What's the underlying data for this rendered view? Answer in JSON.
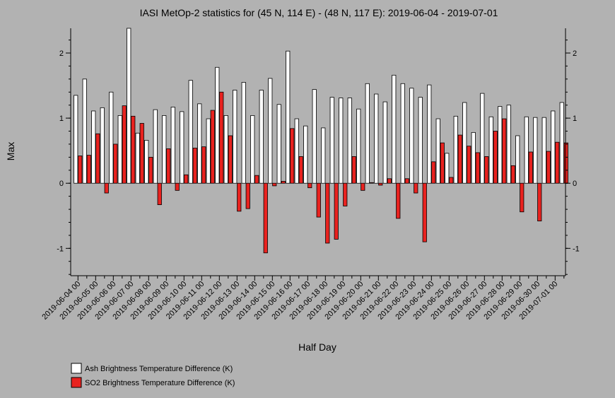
{
  "chart_data": {
    "type": "bar",
    "title": "IASI MetOp-2 statistics for (45 N, 114 E) - (48 N, 117 E): 2019-06-04 - 2019-07-01",
    "xlabel": "Half Day",
    "ylabel": "Max",
    "ylim": [
      -1.42,
      2.38
    ],
    "yticks": [
      -1,
      0,
      1,
      2
    ],
    "grid": false,
    "legend_position": "bottom-left",
    "categories": [
      "2019-06-04 00",
      "2019-06-04 12",
      "2019-06-05 00",
      "2019-06-05 12",
      "2019-06-06 00",
      "2019-06-06 12",
      "2019-06-07 00",
      "2019-06-07 12",
      "2019-06-08 00",
      "2019-06-08 12",
      "2019-06-09 00",
      "2019-06-09 12",
      "2019-06-10 00",
      "2019-06-10 12",
      "2019-06-11 00",
      "2019-06-11 12",
      "2019-06-12 00",
      "2019-06-12 12",
      "2019-06-13 00",
      "2019-06-13 12",
      "2019-06-14 00",
      "2019-06-14 12",
      "2019-06-15 00",
      "2019-06-15 12",
      "2019-06-16 00",
      "2019-06-16 12",
      "2019-06-17 00",
      "2019-06-17 12",
      "2019-06-18 00",
      "2019-06-18 12",
      "2019-06-19 00",
      "2019-06-19 12",
      "2019-06-20 00",
      "2019-06-20 12",
      "2019-06-21 00",
      "2019-06-21 12",
      "2019-06-22 00",
      "2019-06-22 12",
      "2019-06-23 00",
      "2019-06-23 12",
      "2019-06-24 00",
      "2019-06-24 12",
      "2019-06-25 00",
      "2019-06-25 12",
      "2019-06-26 00",
      "2019-06-26 12",
      "2019-06-27 00",
      "2019-06-27 12",
      "2019-06-28 00",
      "2019-06-28 12",
      "2019-06-29 00",
      "2019-06-29 12",
      "2019-06-30 00",
      "2019-06-30 12",
      "2019-07-01 00",
      "2019-07-01 12"
    ],
    "xtick_labels": [
      "2019-06-04 00",
      "2019-06-05 00",
      "2019-06-06 00",
      "2019-06-07 00",
      "2019-06-08 00",
      "2019-06-09 00",
      "2019-06-10 00",
      "2019-06-11 00",
      "2019-06-12 00",
      "2019-06-13 00",
      "2019-06-14 00",
      "2019-06-15 00",
      "2019-06-16 00",
      "2019-06-17 00",
      "2019-06-18 00",
      "2019-06-19 00",
      "2019-06-20 00",
      "2019-06-21 00",
      "2019-06-22 00",
      "2019-06-23 00",
      "2019-06-24 00",
      "2019-06-25 00",
      "2019-06-26 00",
      "2019-06-27 00",
      "2019-06-28 00",
      "2019-06-29 00",
      "2019-06-30 00",
      "2019-07-01 00"
    ],
    "series": [
      {
        "name": "Ash Brightness Temperature Difference (K)",
        "color": "#ffffff",
        "values": [
          1.35,
          1.6,
          1.11,
          1.16,
          1.4,
          1.04,
          2.38,
          0.77,
          0.66,
          1.13,
          1.04,
          1.17,
          1.1,
          1.58,
          1.22,
          0.99,
          1.78,
          1.04,
          1.43,
          1.55,
          1.04,
          1.43,
          1.61,
          1.21,
          2.03,
          0.99,
          0.88,
          1.44,
          0.85,
          1.32,
          1.31,
          1.31,
          1.14,
          1.53,
          1.37,
          1.25,
          1.66,
          1.53,
          1.46,
          1.32,
          1.51,
          0.99,
          0.46,
          1.03,
          1.24,
          0.78,
          1.38,
          1.02,
          1.18,
          1.2,
          0.73,
          1.02,
          1.01,
          1.01,
          1.11,
          1.24
        ]
      },
      {
        "name": "SO2 Brightness Temperature Difference (K)",
        "color": "#e8221f",
        "values": [
          0.42,
          0.43,
          0.76,
          -0.15,
          0.6,
          1.19,
          1.03,
          0.92,
          0.4,
          -0.33,
          0.53,
          -0.11,
          0.13,
          0.54,
          0.56,
          1.12,
          1.4,
          0.73,
          -0.43,
          -0.39,
          0.12,
          -1.07,
          -0.04,
          0.03,
          0.84,
          0.41,
          -0.07,
          -0.52,
          -0.92,
          -0.86,
          -0.35,
          0.41,
          -0.11,
          0.01,
          -0.03,
          0.07,
          -0.54,
          0.07,
          -0.15,
          -0.9,
          0.33,
          0.62,
          0.09,
          0.74,
          0.57,
          0.47,
          0.41,
          0.8,
          0.99,
          0.27,
          -0.44,
          0.48,
          -0.58,
          0.49,
          0.63,
          0.62
        ]
      }
    ]
  }
}
